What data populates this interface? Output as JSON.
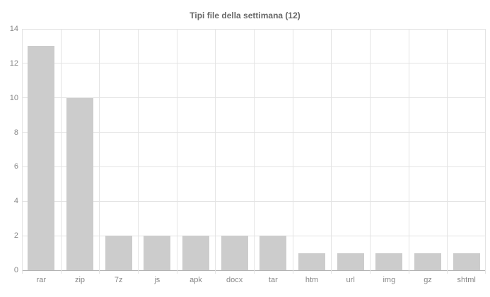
{
  "chart": {
    "title": "Tipi file della settimana (12)"
  },
  "chart_data": {
    "type": "bar",
    "title": "Tipi file della settimana (12)",
    "categories": [
      "rar",
      "zip",
      "7z",
      "js",
      "apk",
      "docx",
      "tar",
      "htm",
      "url",
      "img",
      "gz",
      "shtml"
    ],
    "values": [
      13,
      10,
      2,
      2,
      2,
      2,
      2,
      1,
      1,
      1,
      1,
      1
    ],
    "xlabel": "",
    "ylabel": "",
    "ylim": [
      0,
      14
    ],
    "yticks": [
      0,
      2,
      4,
      6,
      8,
      10,
      12,
      14
    ],
    "grid": true,
    "legend": false,
    "colors": {
      "bar": "#cccccc",
      "grid": "#e3e3e3",
      "axis_line": "#b3b3b3",
      "tick_label": "#888888",
      "title": "#666666",
      "background": "#ffffff"
    }
  }
}
